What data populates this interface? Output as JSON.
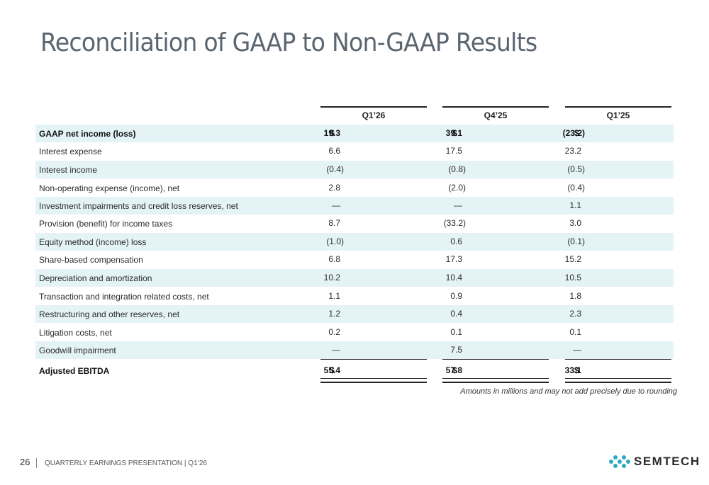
{
  "title": "Reconciliation of GAAP to Non-GAAP Results",
  "columns": [
    "Q1’26",
    "Q4’25",
    "Q1’25"
  ],
  "currency_symbol": "$",
  "rows": [
    {
      "label": "GAAP net income (loss)",
      "values": [
        "19.3",
        "39.1",
        "(23.2)"
      ]
    },
    {
      "label": "Interest expense",
      "values": [
        "6.6",
        "17.5",
        "23.2"
      ]
    },
    {
      "label": "Interest income",
      "values": [
        "(0.4)",
        "(0.8)",
        "(0.5)"
      ]
    },
    {
      "label": "Non-operating expense (income), net",
      "values": [
        "2.8",
        "(2.0)",
        "(0.4)"
      ]
    },
    {
      "label": "Investment impairments and credit loss reserves, net",
      "values": [
        "—",
        "—",
        "1.1"
      ]
    },
    {
      "label": "Provision (benefit) for income taxes",
      "values": [
        "8.7",
        "(33.2)",
        "3.0"
      ]
    },
    {
      "label": "Equity method (income) loss",
      "values": [
        "(1.0)",
        "0.6",
        "(0.1)"
      ]
    },
    {
      "label": "Share-based compensation",
      "values": [
        "6.8",
        "17.3",
        "15.2"
      ]
    },
    {
      "label": "Depreciation and amortization",
      "values": [
        "10.2",
        "10.4",
        "10.5"
      ]
    },
    {
      "label": "Transaction and integration related costs, net",
      "values": [
        "1.1",
        "0.9",
        "1.8"
      ]
    },
    {
      "label": "Restructuring and other reserves, net",
      "values": [
        "1.2",
        "0.4",
        "2.3"
      ]
    },
    {
      "label": "Litigation costs, net",
      "values": [
        "0.2",
        "0.1",
        "0.1"
      ]
    },
    {
      "label": "Goodwill impairment",
      "values": [
        "—",
        "7.5",
        "—"
      ]
    },
    {
      "label": "Adjusted EBITDA",
      "values": [
        "55.4",
        "57.8",
        "33.1"
      ]
    }
  ],
  "footnote": "Amounts in millions and may not add precisely due to rounding",
  "footer": {
    "page_number": "26",
    "text": "QUARTERLY EARNINGS PRESENTATION | Q1’26"
  },
  "logo": {
    "name": "semtech-logo-icon",
    "text": "SEMTECH",
    "color": "#2fa9c4"
  }
}
